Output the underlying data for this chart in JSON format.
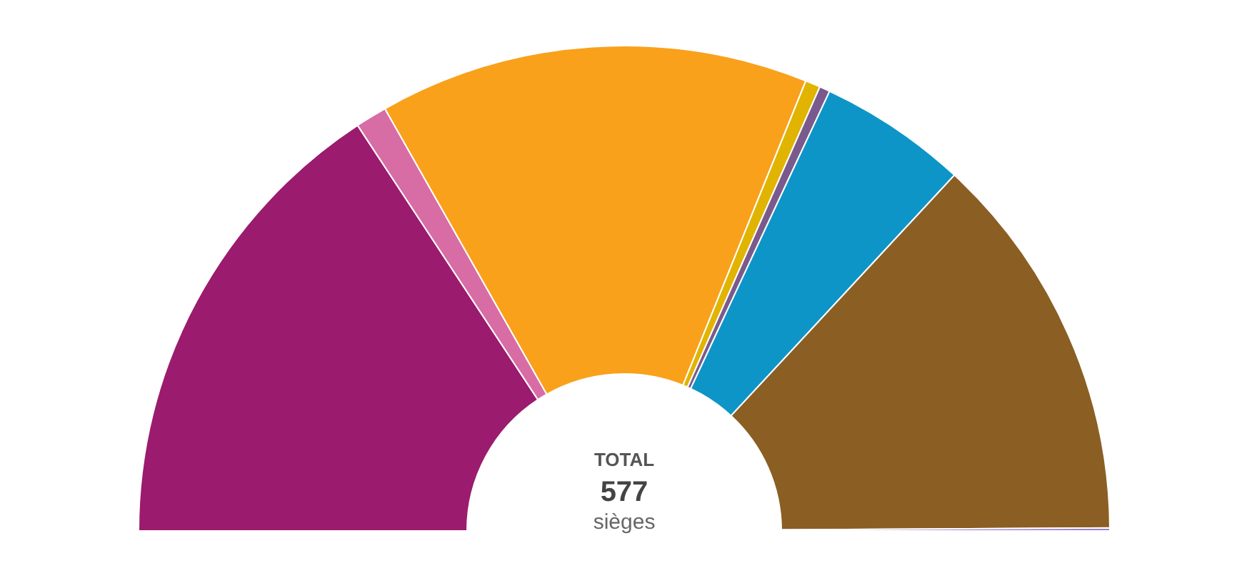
{
  "chart_data": {
    "type": "donut",
    "categories": [
      null,
      null,
      null,
      null,
      null,
      null,
      null,
      null
    ],
    "values": [
      31.5,
      2.1,
      28.6,
      1.0,
      0.7,
      9.9,
      26.0,
      0.2
    ],
    "colors": [
      "#9b1b6e",
      "#d86ca5",
      "#f9a11b",
      "#e0b400",
      "#7a5a8c",
      "#0e95c8",
      "#8b5e23",
      "#9d7cc5"
    ],
    "annotations": [
      "TOTAL",
      "577",
      "sièges"
    ]
  }
}
